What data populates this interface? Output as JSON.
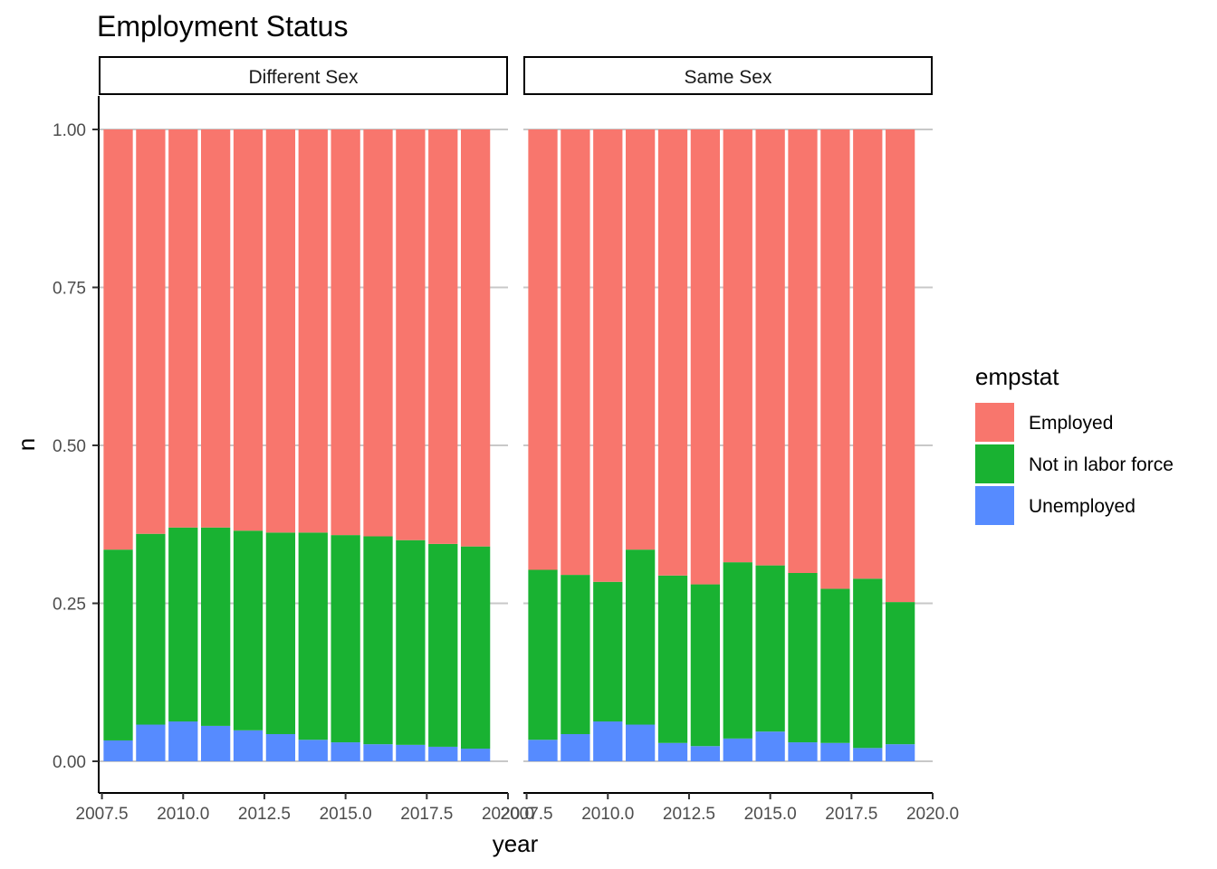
{
  "chart_data": {
    "type": "bar",
    "stacked": true,
    "title": "Employment Status",
    "xlabel": "year",
    "ylabel": "n",
    "x_ticks": [
      "2007.5",
      "2010.0",
      "2012.5",
      "2015.0",
      "2017.5",
      "2020.0"
    ],
    "x_tick_values": [
      2007.5,
      2010.0,
      2012.5,
      2015.0,
      2017.5,
      2020.0
    ],
    "y_ticks": [
      "0.00",
      "0.25",
      "0.50",
      "0.75",
      "1.00"
    ],
    "y_tick_values": [
      0,
      0.25,
      0.5,
      0.75,
      1.0
    ],
    "xlim": [
      2007.4,
      2020.0
    ],
    "ylim": [
      -0.045,
      1.045
    ],
    "grid": "horizontal major",
    "legend": {
      "title": "empstat",
      "position": "right",
      "entries": [
        "Employed",
        "Not in labor force",
        "Unemployed"
      ]
    },
    "series_colors": {
      "Employed": "#F8766D",
      "Not in labor force": "#19B232",
      "Unemployed": "#568BFF"
    },
    "x": [
      2008,
      2009,
      2010,
      2011,
      2012,
      2013,
      2014,
      2015,
      2016,
      2017,
      2018,
      2019
    ],
    "panels": [
      {
        "label": "Different Sex",
        "series": [
          {
            "name": "Unemployed",
            "values": [
              0.033,
              0.058,
              0.063,
              0.056,
              0.049,
              0.043,
              0.034,
              0.03,
              0.027,
              0.026,
              0.023,
              0.02
            ]
          },
          {
            "name": "Not in labor force",
            "values": [
              0.302,
              0.302,
              0.307,
              0.314,
              0.316,
              0.319,
              0.328,
              0.328,
              0.329,
              0.324,
              0.321,
              0.32
            ]
          },
          {
            "name": "Employed",
            "values": [
              0.665,
              0.64,
              0.63,
              0.63,
              0.635,
              0.638,
              0.638,
              0.642,
              0.644,
              0.65,
              0.656,
              0.66
            ]
          }
        ]
      },
      {
        "label": "Same Sex",
        "series": [
          {
            "name": "Unemployed",
            "values": [
              0.034,
              0.043,
              0.063,
              0.058,
              0.029,
              0.024,
              0.036,
              0.047,
              0.03,
              0.029,
              0.021,
              0.027
            ]
          },
          {
            "name": "Not in labor force",
            "values": [
              0.269,
              0.252,
              0.221,
              0.277,
              0.265,
              0.256,
              0.279,
              0.263,
              0.268,
              0.244,
              0.268,
              0.225
            ]
          },
          {
            "name": "Employed",
            "values": [
              0.697,
              0.705,
              0.716,
              0.665,
              0.706,
              0.72,
              0.685,
              0.69,
              0.702,
              0.727,
              0.711,
              0.748
            ]
          }
        ]
      }
    ]
  }
}
